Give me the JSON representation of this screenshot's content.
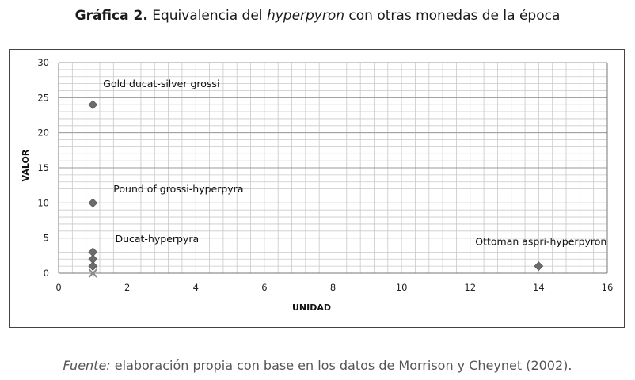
{
  "header": {
    "title_bold": "Gráfica 2.",
    "title_pre": " Equivalencia del ",
    "title_italic": "hyperpyron",
    "title_post": " con otras monedas de la época"
  },
  "footer": {
    "source_italic": "Fuente:",
    "source_text": " elaboración propia con base en los datos de Morrison y Cheynet (2002)."
  },
  "chart_data": {
    "type": "scatter",
    "xlabel": "UNIDAD",
    "ylabel": "VALOR",
    "xlim": [
      0,
      16
    ],
    "ylim": [
      0,
      30
    ],
    "x_ticks": [
      0,
      2,
      4,
      6,
      8,
      10,
      12,
      14,
      16
    ],
    "y_ticks": [
      0,
      5,
      10,
      15,
      20,
      25,
      30
    ],
    "grid": true,
    "marker_color": "#6b6b6b",
    "points": [
      {
        "x": 1,
        "y": 24,
        "marker": "diamond"
      },
      {
        "x": 1,
        "y": 10,
        "marker": "diamond"
      },
      {
        "x": 1,
        "y": 3,
        "marker": "diamond"
      },
      {
        "x": 1,
        "y": 2,
        "marker": "diamond"
      },
      {
        "x": 1,
        "y": 1,
        "marker": "diamond"
      },
      {
        "x": 1,
        "y": 0,
        "marker": "x"
      },
      {
        "x": 14,
        "y": 1,
        "marker": "diamond"
      }
    ],
    "annotations": [
      {
        "text": "Gold ducat-silver grossi",
        "x": 1.3,
        "y": 26.5
      },
      {
        "text": "Pound of grossi-hyperpyra",
        "x": 1.6,
        "y": 11.5
      },
      {
        "text": "Ducat-hyperpyra",
        "x": 1.65,
        "y": 4.4
      },
      {
        "text": "Ottoman aspri-hyperpyron",
        "x": 12.15,
        "y": 4.0
      }
    ]
  }
}
